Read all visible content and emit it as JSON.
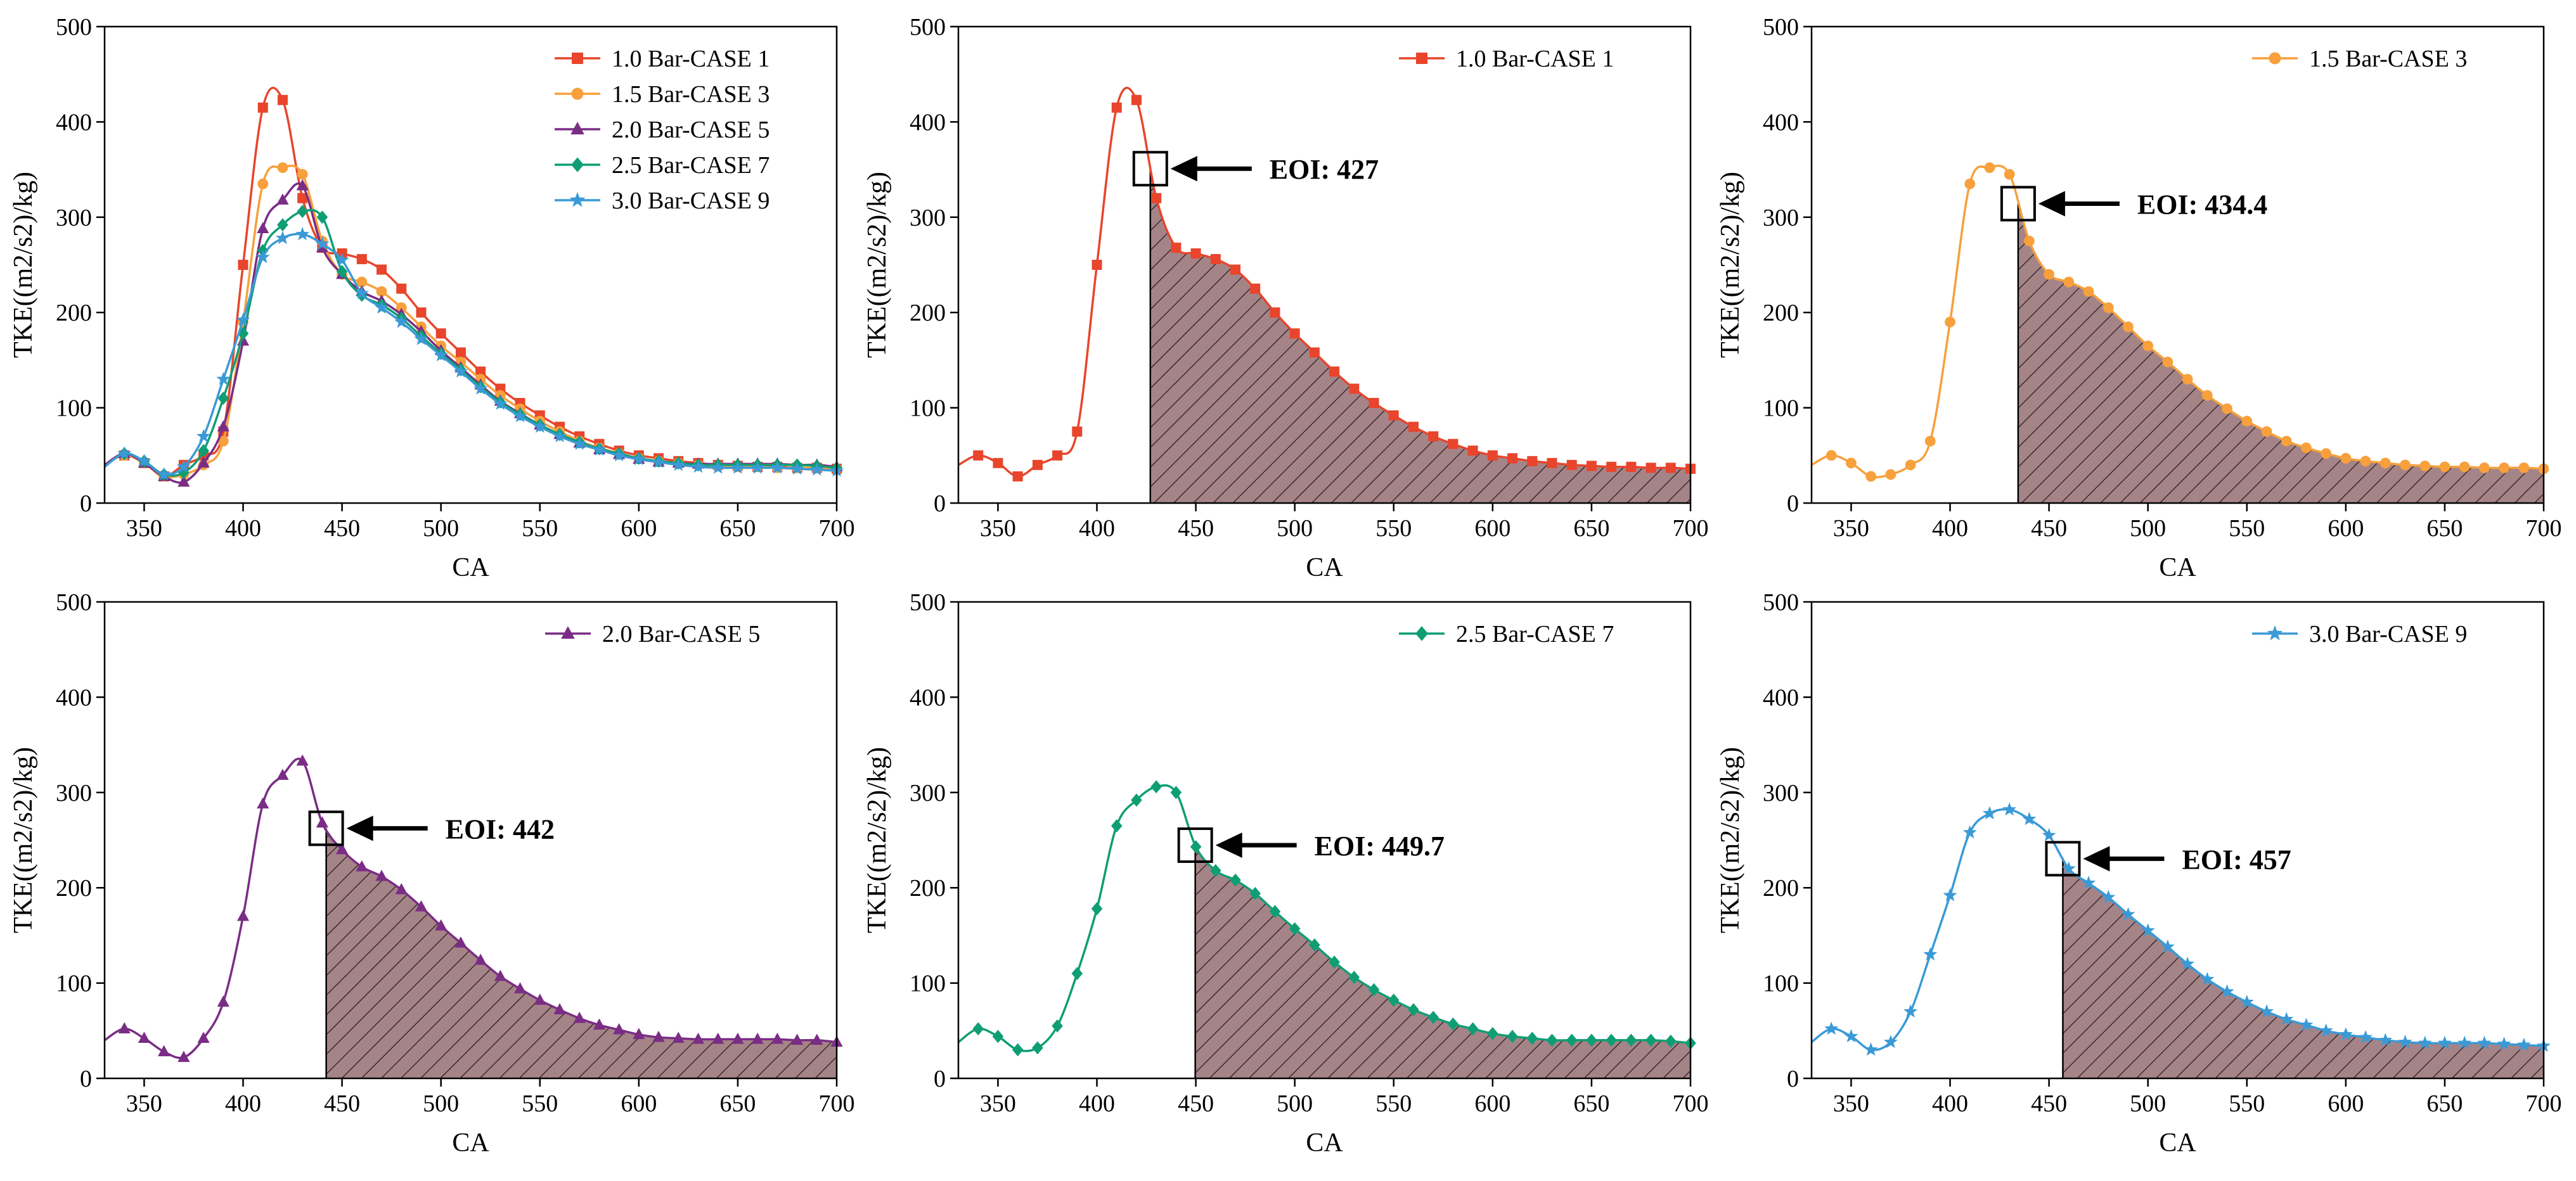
{
  "chart_data": [
    {
      "type": "line",
      "panel": "all-cases",
      "xlabel": "CA",
      "ylabel": "TKE((m2/s2)/kg)",
      "xlim": [
        330,
        700
      ],
      "ylim": [
        0,
        500
      ],
      "xticks": [
        350,
        400,
        450,
        500,
        550,
        600,
        650,
        700
      ],
      "yticks": [
        0,
        100,
        200,
        300,
        400,
        500
      ],
      "legend_position": "top-right",
      "series": [
        {
          "name": "1.0 Bar-CASE 1",
          "color": "#e8452c",
          "marker": "square",
          "x": [
            330,
            340,
            350,
            360,
            370,
            380,
            390,
            400,
            410,
            420,
            430,
            440,
            450,
            460,
            470,
            480,
            490,
            500,
            510,
            520,
            530,
            540,
            550,
            560,
            570,
            580,
            590,
            600,
            610,
            620,
            630,
            640,
            650,
            660,
            670,
            680,
            690,
            700
          ],
          "y": [
            40,
            50,
            42,
            28,
            40,
            50,
            75,
            250,
            415,
            423,
            320,
            268,
            262,
            256,
            245,
            225,
            200,
            178,
            158,
            138,
            120,
            105,
            92,
            80,
            70,
            62,
            55,
            50,
            47,
            44,
            42,
            40,
            39,
            38,
            38,
            37,
            37,
            36
          ]
        },
        {
          "name": "1.5 Bar-CASE 3",
          "color": "#f7a03c",
          "marker": "circle",
          "x": [
            330,
            340,
            350,
            360,
            370,
            380,
            390,
            400,
            410,
            420,
            430,
            440,
            450,
            460,
            470,
            480,
            490,
            500,
            510,
            520,
            530,
            540,
            550,
            560,
            570,
            580,
            590,
            600,
            610,
            620,
            630,
            640,
            650,
            660,
            670,
            680,
            690,
            700
          ],
          "y": [
            40,
            50,
            42,
            28,
            30,
            40,
            65,
            190,
            335,
            352,
            345,
            275,
            240,
            232,
            222,
            205,
            185,
            165,
            148,
            130,
            113,
            99,
            86,
            75,
            65,
            58,
            52,
            47,
            44,
            42,
            40,
            39,
            38,
            38,
            37,
            37,
            37,
            36
          ]
        },
        {
          "name": "2.0 Bar-CASE 5",
          "color": "#7a2d85",
          "marker": "triangle",
          "x": [
            330,
            340,
            350,
            360,
            370,
            380,
            390,
            400,
            410,
            420,
            430,
            440,
            450,
            460,
            470,
            480,
            490,
            500,
            510,
            520,
            530,
            540,
            550,
            560,
            570,
            580,
            590,
            600,
            610,
            620,
            630,
            640,
            650,
            660,
            670,
            680,
            690,
            700
          ],
          "y": [
            40,
            52,
            42,
            28,
            22,
            42,
            80,
            170,
            288,
            318,
            333,
            268,
            240,
            222,
            212,
            198,
            180,
            160,
            142,
            124,
            107,
            94,
            82,
            72,
            63,
            56,
            51,
            46,
            43,
            42,
            41,
            41,
            41,
            41,
            41,
            40,
            40,
            38
          ]
        },
        {
          "name": "2.5 Bar-CASE 7",
          "color": "#0f9e74",
          "marker": "diamond",
          "x": [
            330,
            340,
            350,
            360,
            370,
            380,
            390,
            400,
            410,
            420,
            430,
            440,
            450,
            460,
            470,
            480,
            490,
            500,
            510,
            520,
            530,
            540,
            550,
            560,
            570,
            580,
            590,
            600,
            610,
            620,
            630,
            640,
            650,
            660,
            670,
            680,
            690,
            700
          ],
          "y": [
            38,
            52,
            44,
            30,
            32,
            55,
            110,
            178,
            265,
            292,
            306,
            300,
            243,
            218,
            208,
            194,
            175,
            157,
            140,
            122,
            106,
            93,
            82,
            72,
            64,
            57,
            52,
            47,
            44,
            42,
            40,
            40,
            40,
            40,
            40,
            40,
            39,
            37
          ]
        },
        {
          "name": "3.0 Bar-CASE 9",
          "color": "#3a9ad6",
          "marker": "star",
          "x": [
            330,
            340,
            350,
            360,
            370,
            380,
            390,
            400,
            410,
            420,
            430,
            440,
            450,
            460,
            470,
            480,
            490,
            500,
            510,
            520,
            530,
            540,
            550,
            560,
            570,
            580,
            590,
            600,
            610,
            620,
            630,
            640,
            650,
            660,
            670,
            680,
            690,
            700
          ],
          "y": [
            38,
            52,
            44,
            30,
            38,
            70,
            130,
            192,
            258,
            278,
            282,
            272,
            255,
            220,
            205,
            190,
            172,
            155,
            138,
            120,
            104,
            91,
            80,
            70,
            62,
            56,
            50,
            46,
            43,
            40,
            38,
            37,
            37,
            37,
            37,
            36,
            35,
            34
          ]
        }
      ]
    },
    {
      "type": "area",
      "panel": "case-1",
      "legend": "1.0 Bar-CASE 1",
      "series_index": 0,
      "eoi_x": 427,
      "eoi_label": "EOI: 427",
      "xlabel": "CA",
      "ylabel": "TKE((m2/s2)/kg)",
      "xlim": [
        330,
        700
      ],
      "ylim": [
        0,
        500
      ],
      "legend_position": "top-right"
    },
    {
      "type": "area",
      "panel": "case-3",
      "legend": "1.5 Bar-CASE 3",
      "series_index": 1,
      "eoi_x": 434.4,
      "eoi_label": "EOI: 434.4",
      "xlabel": "CA",
      "ylabel": "TKE((m2/s2)/kg)",
      "xlim": [
        330,
        700
      ],
      "ylim": [
        0,
        500
      ],
      "legend_position": "top-right"
    },
    {
      "type": "area",
      "panel": "case-5",
      "legend": "2.0 Bar-CASE 5",
      "series_index": 2,
      "eoi_x": 442,
      "eoi_label": "EOI: 442",
      "xlabel": "CA",
      "ylabel": "TKE((m2/s2)/kg)",
      "xlim": [
        330,
        700
      ],
      "ylim": [
        0,
        500
      ],
      "legend_position": "top-right"
    },
    {
      "type": "area",
      "panel": "case-7",
      "legend": "2.5 Bar-CASE 7",
      "series_index": 3,
      "eoi_x": 449.7,
      "eoi_label": "EOI: 449.7",
      "xlabel": "CA",
      "ylabel": "TKE((m2/s2)/kg)",
      "xlim": [
        330,
        700
      ],
      "ylim": [
        0,
        500
      ],
      "legend_position": "top-right"
    },
    {
      "type": "area",
      "panel": "case-9",
      "legend": "3.0 Bar-CASE 9",
      "series_index": 4,
      "eoi_x": 457,
      "eoi_label": "EOI: 457",
      "xlabel": "CA",
      "ylabel": "TKE((m2/s2)/kg)",
      "xlim": [
        330,
        700
      ],
      "ylim": [
        0,
        500
      ],
      "legend_position": "top-right"
    }
  ],
  "style": {
    "shade_color": "#a58488",
    "hatch_color": "#3a2a2e"
  }
}
